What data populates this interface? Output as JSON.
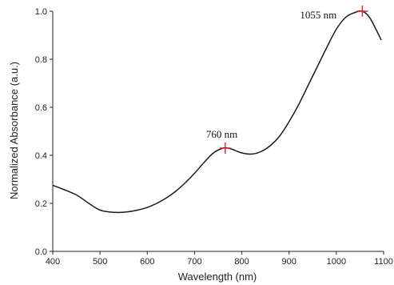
{
  "chart_data": {
    "type": "line",
    "xlabel": "Wavelength (nm)",
    "ylabel": "Normalized Absorbance (a.u.)",
    "xlim": [
      400,
      1100
    ],
    "ylim": [
      0.0,
      1.0
    ],
    "x_ticks": [
      400,
      500,
      600,
      700,
      800,
      900,
      1000,
      1100
    ],
    "y_ticks": [
      0.0,
      0.2,
      0.4,
      0.6,
      0.8,
      1.0
    ],
    "x_tick_labels": [
      "400",
      "500",
      "600",
      "700",
      "800",
      "900",
      "1000",
      "1100"
    ],
    "y_tick_labels": [
      "0.0",
      "0.2",
      "0.4",
      "0.6",
      "0.8",
      "1.0"
    ],
    "grid": false,
    "series": [
      {
        "color": "#1a1a1a",
        "x": [
          400,
          420,
          450,
          480,
          500,
          520,
          540,
          560,
          580,
          600,
          620,
          640,
          660,
          680,
          700,
          720,
          740,
          760,
          770,
          780,
          800,
          820,
          840,
          860,
          880,
          900,
          920,
          940,
          960,
          980,
          1000,
          1020,
          1040,
          1055,
          1070,
          1085,
          1095
        ],
        "y": [
          0.275,
          0.26,
          0.235,
          0.195,
          0.172,
          0.164,
          0.162,
          0.165,
          0.172,
          0.183,
          0.2,
          0.222,
          0.25,
          0.285,
          0.325,
          0.37,
          0.41,
          0.43,
          0.43,
          0.425,
          0.41,
          0.405,
          0.415,
          0.44,
          0.48,
          0.54,
          0.61,
          0.69,
          0.77,
          0.85,
          0.925,
          0.975,
          0.995,
          1.0,
          0.975,
          0.92,
          0.88
        ]
      }
    ],
    "annotations": [
      {
        "label": "760 nm",
        "x": 765,
        "y": 0.43,
        "color": "#e0202a"
      },
      {
        "label": "1055 nm",
        "x": 1055,
        "y": 1.0,
        "color": "#e0202a"
      }
    ]
  }
}
